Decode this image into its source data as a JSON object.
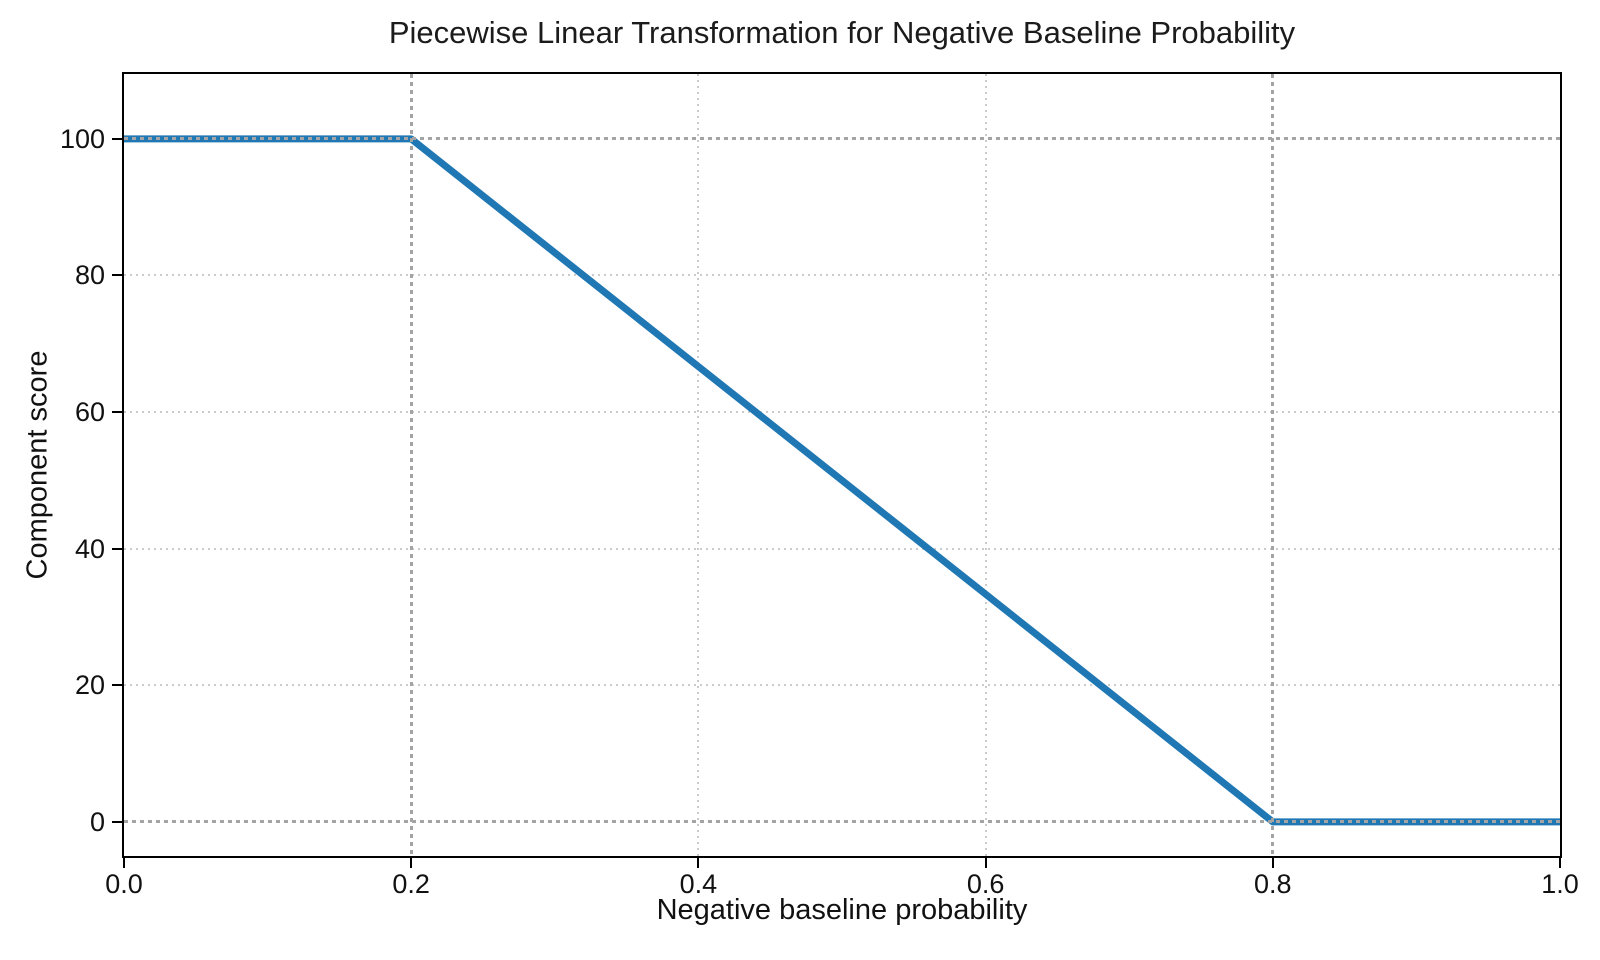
{
  "chart_data": {
    "type": "line",
    "title": "Piecewise Linear Transformation for Negative Baseline Probability",
    "xlabel": "Negative baseline probability",
    "ylabel": "Component score",
    "xlim": [
      0.0,
      1.0
    ],
    "ylim": [
      -5,
      109.5
    ],
    "x_tick_values": [
      0.0,
      0.2,
      0.4,
      0.6,
      0.8,
      1.0
    ],
    "x_tick_labels": [
      "0.0",
      "0.2",
      "0.4",
      "0.6",
      "0.8",
      "1.0"
    ],
    "y_tick_values": [
      0,
      20,
      40,
      60,
      80,
      100
    ],
    "y_tick_labels": [
      "0",
      "20",
      "40",
      "60",
      "80",
      "100"
    ],
    "series": [
      {
        "name": "component-score-line",
        "color": "#1f77b4",
        "linewidth": 7,
        "points": [
          [
            0.0,
            100
          ],
          [
            0.2,
            100
          ],
          [
            0.8,
            0
          ],
          [
            1.0,
            0
          ]
        ]
      }
    ],
    "breakpoints": {
      "flat_high_until_x": 0.2,
      "flat_low_from_x": 0.8,
      "high_value": 100,
      "low_value": 0
    },
    "reference_lines": {
      "style": "dotted",
      "color": "#a4a4a4",
      "vertical_x": [
        0.2,
        0.8
      ],
      "horizontal_y": [
        0,
        100
      ]
    },
    "grid": {
      "on": true,
      "style": "dotted",
      "color": "#cbcbcb"
    },
    "legend": "none",
    "spine_color": "#000000",
    "background_color": "#ffffff"
  }
}
